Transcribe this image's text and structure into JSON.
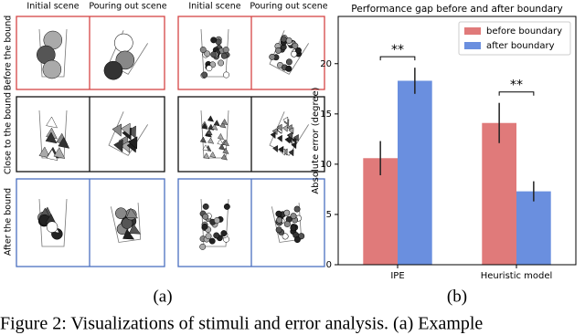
{
  "panel_a": {
    "column_headers": [
      "Initial scene",
      "Pouring out scene",
      "Initial scene",
      "Pouring out scene"
    ],
    "row_labels": [
      "Before the bound",
      "Close to the bound",
      "After the bound"
    ]
  },
  "chart_data": {
    "type": "bar",
    "title": "Performance gap before and after boundary",
    "ylabel": "Absolute error (degree)",
    "categories": [
      "IPE",
      "Heuristic model"
    ],
    "series": [
      {
        "name": "before boundary",
        "color": "#e07a7a",
        "values": [
          10.6,
          14.1
        ],
        "errors": [
          1.7,
          2.0
        ]
      },
      {
        "name": "after boundary",
        "color": "#6a8fdf",
        "values": [
          18.3,
          7.3
        ],
        "errors": [
          1.3,
          1.0
        ]
      }
    ],
    "annotations": [
      "**",
      "**"
    ],
    "ylim": [
      0,
      24.7
    ],
    "yticks": [
      0,
      5,
      10,
      15,
      20
    ],
    "legend": "upper right"
  },
  "captions": {
    "a": "(a)",
    "b": "(b)",
    "figure": "Figure 2: Visualizations of stimuli and error analysis. (a) Example"
  }
}
